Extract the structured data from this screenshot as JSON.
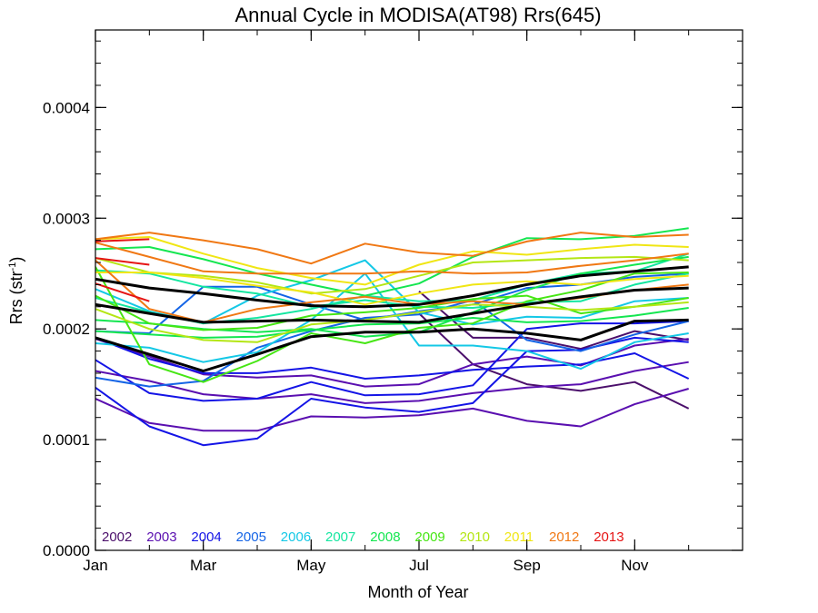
{
  "chart_data": {
    "type": "line",
    "title": "Annual Cycle in MODISA(AT98) Rrs(645)",
    "xlabel": "Month of Year",
    "ylabel": "Rrs (str",
    "ylabel_superscript": "-1",
    "ylabel_suffix": ")",
    "xlim": [
      1,
      13
    ],
    "ylim": [
      0,
      0.00047
    ],
    "x_ticks": [
      {
        "value": 1,
        "label": "Jan"
      },
      {
        "value": 3,
        "label": "Mar"
      },
      {
        "value": 5,
        "label": "May"
      },
      {
        "value": 7,
        "label": "Jul"
      },
      {
        "value": 9,
        "label": "Sep"
      },
      {
        "value": 11,
        "label": "Nov"
      }
    ],
    "y_ticks": [
      {
        "value": 0.0,
        "label": "0.0000"
      },
      {
        "value": 0.0001,
        "label": "0.0001"
      },
      {
        "value": 0.0002,
        "label": "0.0002"
      },
      {
        "value": 0.0003,
        "label": "0.0003"
      },
      {
        "value": 0.0004,
        "label": "0.0004"
      }
    ],
    "grid": false,
    "legend_position": "bottom-left",
    "x": [
      1,
      2,
      3,
      4,
      5,
      6,
      7,
      8,
      9,
      10,
      11,
      12
    ],
    "series": [
      {
        "name": "2002",
        "color": "#4b0f6b",
        "lines": [
          [
            null,
            null,
            null,
            null,
            null,
            null,
            0.000234,
            0.000192,
            0.000192,
            0.000182,
            0.000198,
            0.00019
          ],
          [
            null,
            null,
            null,
            null,
            null,
            null,
            0.000214,
            0.000168,
            0.00015,
            0.000144,
            0.000152,
            0.000128
          ]
        ]
      },
      {
        "name": "2003",
        "color": "#5a0fb0",
        "lines": [
          [
            0.000137,
            0.000115,
            0.000108,
            0.000108,
            0.000121,
            0.00012,
            0.000122,
            0.000128,
            0.000117,
            0.000112,
            0.000132,
            0.000146
          ],
          [
            0.000162,
            0.000153,
            0.000141,
            0.000137,
            0.000141,
            0.000133,
            0.000135,
            0.000142,
            0.000147,
            0.00015,
            0.000162,
            0.00017
          ],
          [
            0.000191,
            0.000175,
            0.000159,
            0.000156,
            0.000158,
            0.000148,
            0.00015,
            0.000168,
            0.000175,
            0.000167,
            0.000185,
            0.000191
          ]
        ]
      },
      {
        "name": "2004",
        "color": "#1414e6",
        "lines": [
          [
            0.000147,
            0.000112,
            9.5e-05,
            0.000101,
            0.000137,
            0.000129,
            0.000125,
            0.000133,
            0.00018,
            0.000181,
            0.000192,
            0.000188
          ],
          [
            0.000172,
            0.000142,
            0.000135,
            0.000137,
            0.000152,
            0.00014,
            0.000141,
            0.000149,
            0.0002,
            0.000205,
            0.000205,
            0.000207
          ],
          [
            0.000192,
            0.000173,
            0.00016,
            0.00016,
            0.000165,
            0.000155,
            0.000158,
            0.000163,
            0.000166,
            0.000168,
            0.000178,
            0.000155
          ]
        ]
      },
      {
        "name": "2005",
        "color": "#1464e6",
        "lines": [
          [
            0.000156,
            0.000148,
            0.000153,
            0.000183,
            0.000198,
            0.00021,
            0.000213,
            0.000226,
            0.00019,
            0.00018,
            0.000195,
            0.000207
          ],
          [
            0.000198,
            0.000196,
            0.000238,
            0.000238,
            0.000222,
            0.000208,
            0.000216,
            0.000222,
            0.000237,
            0.00024,
            0.000247,
            0.00025
          ]
        ]
      },
      {
        "name": "2006",
        "color": "#14c8e6",
        "lines": [
          [
            0.000187,
            0.000183,
            0.00017,
            0.000179,
            0.000208,
            0.00025,
            0.000185,
            0.000185,
            0.00018,
            0.000164,
            0.000188,
            0.000196
          ],
          [
            0.000236,
            0.000216,
            0.000205,
            0.00023,
            0.000244,
            0.000262,
            0.000215,
            0.000204,
            0.000211,
            0.00021,
            0.000225,
            0.000228
          ]
        ]
      },
      {
        "name": "2007",
        "color": "#14e6a0",
        "lines": [
          [
            0.000228,
            0.000215,
            0.000205,
            0.00021,
            0.000218,
            0.00023,
            0.000225,
            0.000226,
            0.00024,
            0.00025,
            0.000252,
            0.000268
          ],
          [
            0.000253,
            0.00025,
            0.000238,
            0.000232,
            0.00022,
            0.000226,
            0.00022,
            0.000219,
            0.000224,
            0.000225,
            0.00024,
            0.00025
          ]
        ]
      },
      {
        "name": "2008",
        "color": "#14e650",
        "lines": [
          [
            0.000198,
            0.000195,
            0.000192,
            0.000193,
            0.000199,
            0.000204,
            0.000205,
            0.00021,
            0.000206,
            0.000207,
            0.000212,
            0.000219
          ],
          [
            0.000272,
            0.000274,
            0.000263,
            0.00025,
            0.00024,
            0.00023,
            0.000241,
            0.000265,
            0.000282,
            0.000281,
            0.000284,
            0.000291
          ],
          [
            0.000208,
            0.000205,
            0.0002,
            0.000197,
            0.0002,
            0.000193,
            0.000197,
            0.000215,
            0.000235,
            0.00025,
            0.000258,
            0.000265
          ]
        ]
      },
      {
        "name": "2009",
        "color": "#46e614",
        "lines": [
          [
            0.000256,
            0.000168,
            0.000152,
            0.000171,
            0.000196,
            0.000187,
            0.000201,
            0.000205,
            0.000225,
            0.000235,
            0.00025,
            0.000251
          ],
          [
            0.00023,
            0.000205,
            0.000199,
            0.000201,
            0.000212,
            0.000215,
            0.000219,
            0.000227,
            0.00023,
            0.000214,
            0.00022,
            0.000228
          ]
        ]
      },
      {
        "name": "2010",
        "color": "#b4e614",
        "lines": [
          [
            0.000218,
            0.0002,
            0.00019,
            0.000188,
            0.000204,
            0.000208,
            0.000215,
            0.000222,
            0.00022,
            0.000217,
            0.00022,
            0.000224
          ],
          [
            0.000264,
            0.000251,
            0.000248,
            0.000242,
            0.000232,
            0.000236,
            0.000248,
            0.00026,
            0.000262,
            0.000264,
            0.000265,
            0.000262
          ]
        ]
      },
      {
        "name": "2011",
        "color": "#f0e614",
        "lines": [
          [
            0.000251,
            0.000251,
            0.000246,
            0.000239,
            0.000233,
            0.000222,
            0.000232,
            0.00024,
            0.000243,
            0.00024,
            0.000245,
            0.000248
          ],
          [
            0.000281,
            0.000283,
            0.000268,
            0.000255,
            0.000246,
            0.00024,
            0.000258,
            0.00027,
            0.000267,
            0.000272,
            0.000276,
            0.000274
          ]
        ]
      },
      {
        "name": "2012",
        "color": "#f07814",
        "lines": [
          [
            0.000278,
            0.000265,
            0.000252,
            0.00025,
            0.00025,
            0.00025,
            0.000252,
            0.00025,
            0.000251,
            0.000257,
            0.000262,
            0.000268
          ],
          [
            0.000281,
            0.000287,
            0.00028,
            0.000272,
            0.000259,
            0.000277,
            0.000269,
            0.000266,
            0.000279,
            0.000287,
            0.000283,
            0.000285
          ],
          [
            0.000262,
            0.000218,
            0.000206,
            0.000218,
            0.000224,
            0.000229,
            0.000222,
            0.000225,
            0.000222,
            0.000228,
            0.000235,
            0.00024
          ]
        ]
      },
      {
        "name": "2013",
        "color": "#e61414",
        "lines": [
          [
            0.000279,
            0.000281,
            null,
            null,
            null,
            null,
            null,
            null,
            null,
            null,
            null,
            null
          ],
          [
            0.000264,
            0.000258,
            null,
            null,
            null,
            null,
            null,
            null,
            null,
            null,
            null,
            null
          ],
          [
            0.000241,
            0.000225,
            null,
            null,
            null,
            null,
            null,
            null,
            null,
            null,
            null,
            null
          ]
        ]
      }
    ],
    "reference_lines": {
      "color": "#000000",
      "lines": [
        [
          0.000245,
          0.000237,
          0.000232,
          0.000226,
          0.000221,
          0.00022,
          0.000222,
          0.00023,
          0.00024,
          0.000248,
          0.000252,
          0.000256
        ],
        [
          0.000222,
          0.000214,
          0.000206,
          0.000207,
          0.000208,
          0.000207,
          0.000206,
          0.000214,
          0.000222,
          0.000229,
          0.000235,
          0.000237
        ],
        [
          0.000192,
          0.000177,
          0.000162,
          0.000177,
          0.000193,
          0.000197,
          0.000197,
          0.0002,
          0.000196,
          0.00019,
          0.000207,
          0.000208
        ]
      ]
    }
  }
}
